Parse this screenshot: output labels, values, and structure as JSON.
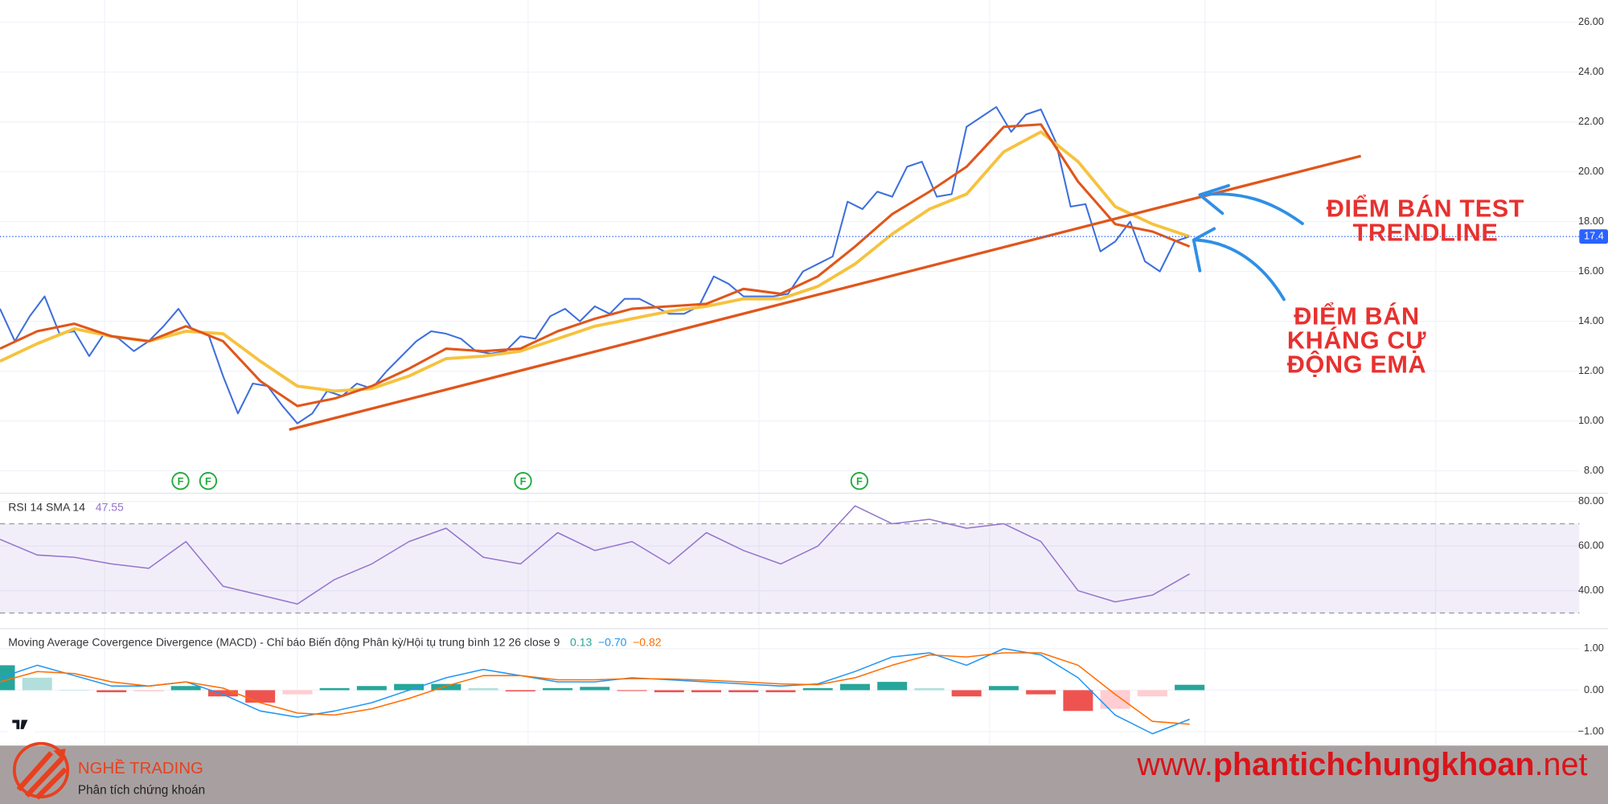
{
  "chart_data": [
    {
      "type": "line",
      "ylim": [
        7.14,
        26.89
      ],
      "yticks": [
        {
          "value": 8,
          "label": "8.00"
        },
        {
          "value": 10,
          "label": "10.00"
        },
        {
          "value": 12,
          "label": "12.00"
        },
        {
          "value": 14,
          "label": "14.00"
        },
        {
          "value": 16,
          "label": "16.00"
        },
        {
          "value": 18,
          "label": "18.00"
        },
        {
          "value": 20,
          "label": "20.00"
        },
        {
          "value": 22,
          "label": "22.00"
        },
        {
          "value": 24,
          "label": "24.00"
        },
        {
          "value": 26,
          "label": "26.00"
        }
      ],
      "grid": true,
      "series": [
        {
          "color": "#3d6fdc",
          "width": 1.6,
          "values": [
            14.5,
            13.2,
            14.2,
            15.0,
            13.5,
            13.6,
            12.6,
            13.5,
            13.3,
            12.8,
            13.2,
            13.8,
            14.5,
            13.6,
            13.5,
            11.8,
            10.3,
            11.5,
            11.4,
            10.6,
            9.9,
            10.3,
            11.2,
            11.0,
            11.5,
            11.3,
            12.0,
            12.6,
            13.2,
            13.6,
            13.5,
            13.3,
            12.8,
            12.7,
            12.8,
            13.4,
            13.3,
            14.2,
            14.5,
            14.0,
            14.6,
            14.3,
            14.9,
            14.9,
            14.6,
            14.3,
            14.3,
            14.6,
            15.8,
            15.5,
            15.0,
            15.0,
            15.0,
            15.1,
            16.0,
            16.3,
            16.6,
            18.8,
            18.5,
            19.2,
            19.0,
            20.2,
            20.4,
            19.0,
            19.1,
            21.8,
            22.2,
            22.6,
            21.6,
            22.3,
            22.5,
            21.2,
            18.6,
            18.7,
            16.8,
            17.2,
            18.0,
            16.4,
            16.0,
            17.2,
            17.4
          ]
        },
        {
          "color": "#f6c23e",
          "width": 3,
          "values": [
            12.4,
            13.1,
            13.7,
            13.4,
            13.2,
            13.6,
            13.5,
            12.4,
            11.4,
            11.2,
            11.3,
            11.8,
            12.5,
            12.6,
            12.8,
            13.3,
            13.8,
            14.1,
            14.4,
            14.6,
            14.9,
            14.9,
            15.4,
            16.3,
            17.5,
            18.5,
            19.1,
            20.8,
            21.6,
            20.4,
            18.6,
            17.9,
            17.4
          ]
        },
        {
          "color": "#e0561b",
          "width": 2.4,
          "values": [
            12.9,
            13.6,
            13.9,
            13.4,
            13.2,
            13.8,
            13.2,
            11.6,
            10.6,
            10.9,
            11.4,
            12.1,
            12.9,
            12.8,
            12.9,
            13.6,
            14.1,
            14.5,
            14.6,
            14.7,
            15.3,
            15.1,
            15.8,
            17.0,
            18.3,
            19.2,
            20.2,
            21.8,
            21.9,
            19.6,
            17.9,
            17.6,
            17.0
          ]
        }
      ],
      "trendline": {
        "color": "#e0561b",
        "values": [
          9.65,
          20.63
        ]
      },
      "events": [
        "F",
        "F",
        "F",
        "F"
      ],
      "annotations": [
        {
          "color": "#e8312f",
          "lines": [
            "ĐIỂM BÁN TEST",
            "TRENDLINE"
          ]
        },
        {
          "color": "#e8312f",
          "lines": [
            "ĐIỂM BÁN",
            "KHÁNG CỰ",
            "ĐỘNG EMA"
          ]
        }
      ]
    },
    {
      "type": "line",
      "title": "RSI 14 SMA 14",
      "ylim": [
        23.45,
        83.2
      ],
      "yticks": [
        {
          "value": 40,
          "label": "40.00"
        },
        {
          "value": 60,
          "label": "60.00"
        },
        {
          "value": 80,
          "label": "80.00"
        }
      ],
      "grid": true,
      "bands": [
        70,
        30
      ],
      "band_color": "#7e57c2",
      "series": [
        {
          "color": "#9575cd",
          "width": 1.2,
          "values": [
            63,
            56,
            55,
            52,
            50,
            62,
            42,
            38,
            34,
            45,
            52,
            62,
            68,
            55,
            52,
            66,
            58,
            62,
            52,
            66,
            58,
            52,
            60,
            78,
            70,
            72,
            68,
            70,
            62,
            40,
            35,
            38,
            47.55
          ]
        }
      ]
    },
    {
      "type": "line",
      "title": "Moving Average Covergence Divergence (MACD) - Chỉ báo Biến động Phân kỳ/Hội tụ trung bình 12 26 close 9",
      "header_values": [
        "0.13",
        "−0.70",
        "−0.82"
      ],
      "header_colors": [
        "#26a69a",
        "#2196f3",
        "#ff6d00"
      ],
      "ylim": [
        -1.333,
        1.457
      ],
      "yticks": [
        {
          "value": -1,
          "label": "−1.00"
        },
        {
          "value": 0,
          "label": "0.00"
        },
        {
          "value": 1,
          "label": "1.00"
        }
      ],
      "grid": true,
      "series": [
        {
          "type": "bar",
          "colors": [
            "#26a69a",
            "#b2dfdb",
            "#ef5350",
            "#ffcdd2"
          ],
          "values": [
            0.6,
            0.3,
            0.0,
            -0.05,
            -0.03,
            0.1,
            -0.15,
            -0.3,
            -0.1,
            0.05,
            0.1,
            0.15,
            0.15,
            0.05,
            -0.03,
            0.05,
            0.08,
            -0.02,
            -0.05,
            -0.05,
            -0.05,
            -0.05,
            0.05,
            0.15,
            0.2,
            0.05,
            -0.15,
            0.1,
            -0.1,
            -0.5,
            -0.45,
            -0.15,
            0.13
          ]
        },
        {
          "color": "#2196f3",
          "width": 1.2,
          "values": [
            0.3,
            0.6,
            0.35,
            0.1,
            0.1,
            0.2,
            -0.1,
            -0.5,
            -0.65,
            -0.5,
            -0.3,
            0.0,
            0.3,
            0.5,
            0.35,
            0.2,
            0.2,
            0.3,
            0.25,
            0.2,
            0.15,
            0.1,
            0.15,
            0.45,
            0.8,
            0.9,
            0.6,
            1.0,
            0.85,
            0.3,
            -0.6,
            -1.05,
            -0.7
          ]
        },
        {
          "color": "#ff6d00",
          "width": 1.2,
          "values": [
            0.2,
            0.45,
            0.4,
            0.2,
            0.1,
            0.2,
            0.05,
            -0.3,
            -0.55,
            -0.6,
            -0.45,
            -0.2,
            0.1,
            0.35,
            0.35,
            0.25,
            0.25,
            0.28,
            0.27,
            0.24,
            0.2,
            0.15,
            0.13,
            0.3,
            0.6,
            0.85,
            0.8,
            0.9,
            0.9,
            0.6,
            -0.1,
            -0.75,
            -0.82
          ]
        }
      ]
    }
  ],
  "banner": {
    "brand": "NGHỀ TRADING",
    "tagline": "Phân tích chứng khoán",
    "url_parts": [
      "www.",
      "phantichchungkhoan",
      ".net"
    ]
  }
}
